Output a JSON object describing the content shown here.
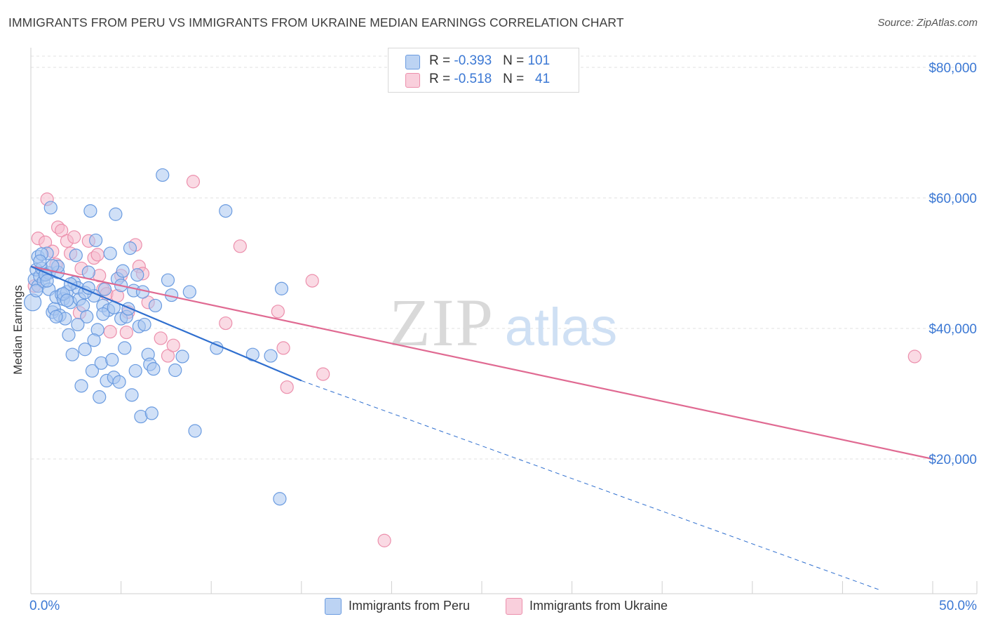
{
  "title": "IMMIGRANTS FROM PERU VS IMMIGRANTS FROM UKRAINE MEDIAN EARNINGS CORRELATION CHART",
  "source": "Source: ZipAtlas.com",
  "watermark": {
    "zip": "ZIP",
    "atlas": "atlas"
  },
  "legend": {
    "peru": {
      "r_label": "R = ",
      "r_value": "-0.393",
      "n_label": "N = ",
      "n_value": "101"
    },
    "ukraine": {
      "r_label": "R = ",
      "r_value": "-0.518",
      "n_label": "N = ",
      "n_value": "41"
    }
  },
  "colors": {
    "peru_fill": "#a9c6f0",
    "peru_stroke": "#6a9be0",
    "peru_line": "#2f6fcf",
    "ukraine_fill": "#f6bccd",
    "ukraine_stroke": "#ec8fac",
    "ukraine_line": "#e06a92",
    "grid": "#e2e2e2",
    "tick_label": "#3b78d4"
  },
  "chart_data": {
    "type": "scatter",
    "title": "IMMIGRANTS FROM PERU VS IMMIGRANTS FROM UKRAINE MEDIAN EARNINGS CORRELATION CHART",
    "xlabel": "",
    "ylabel": "Median Earnings",
    "xlim": [
      0,
      50
    ],
    "ylim": [
      0,
      82000
    ],
    "x_tick_labels": [
      "0.0%",
      "50.0%"
    ],
    "y_ticks": [
      20000,
      40000,
      60000,
      80000
    ],
    "y_tick_labels": [
      "$20,000",
      "$40,000",
      "$60,000",
      "$80,000"
    ],
    "series": [
      {
        "name": "Immigrants from Peru",
        "trend": {
          "x0": 0,
          "y0": 49500,
          "x1": 15,
          "y1": 32000,
          "x_dash_end": 47,
          "y_dash_end": 0
        },
        "points": [
          [
            0.1,
            44000
          ],
          [
            0.2,
            47500
          ],
          [
            0.3,
            49000
          ],
          [
            0.4,
            46500
          ],
          [
            0.4,
            51000
          ],
          [
            0.5,
            48000
          ],
          [
            0.6,
            49200
          ],
          [
            0.7,
            47200
          ],
          [
            0.8,
            48300
          ],
          [
            0.9,
            51500
          ],
          [
            1.0,
            46000
          ],
          [
            1.0,
            48500
          ],
          [
            1.1,
            58500
          ],
          [
            1.2,
            42500
          ],
          [
            1.3,
            43000
          ],
          [
            1.4,
            44800
          ],
          [
            1.5,
            48600
          ],
          [
            1.5,
            49500
          ],
          [
            1.6,
            42000
          ],
          [
            1.7,
            45200
          ],
          [
            1.8,
            44500
          ],
          [
            1.9,
            41500
          ],
          [
            2.0,
            45600
          ],
          [
            2.1,
            39000
          ],
          [
            2.2,
            44000
          ],
          [
            2.3,
            36000
          ],
          [
            2.4,
            47000
          ],
          [
            2.5,
            51200
          ],
          [
            2.6,
            46200
          ],
          [
            2.7,
            44500
          ],
          [
            2.8,
            31200
          ],
          [
            2.9,
            43500
          ],
          [
            3.0,
            36800
          ],
          [
            3.1,
            41800
          ],
          [
            3.2,
            48600
          ],
          [
            3.3,
            58000
          ],
          [
            3.4,
            33500
          ],
          [
            3.5,
            45000
          ],
          [
            3.6,
            53500
          ],
          [
            3.7,
            39800
          ],
          [
            3.8,
            29500
          ],
          [
            3.9,
            34700
          ],
          [
            4.0,
            43500
          ],
          [
            4.1,
            46000
          ],
          [
            4.2,
            32000
          ],
          [
            4.3,
            42800
          ],
          [
            4.4,
            51500
          ],
          [
            4.5,
            35200
          ],
          [
            4.6,
            32500
          ],
          [
            4.7,
            57500
          ],
          [
            4.8,
            47600
          ],
          [
            4.9,
            31800
          ],
          [
            5.0,
            41500
          ],
          [
            5.1,
            48800
          ],
          [
            5.2,
            37000
          ],
          [
            5.3,
            41800
          ],
          [
            5.4,
            43000
          ],
          [
            5.5,
            52300
          ],
          [
            5.6,
            29800
          ],
          [
            5.7,
            45800
          ],
          [
            5.8,
            33500
          ],
          [
            5.9,
            48200
          ],
          [
            6.0,
            40300
          ],
          [
            6.1,
            26500
          ],
          [
            6.2,
            45600
          ],
          [
            6.3,
            40600
          ],
          [
            6.5,
            36000
          ],
          [
            6.6,
            34500
          ],
          [
            6.7,
            27000
          ],
          [
            6.8,
            33800
          ],
          [
            6.9,
            43500
          ],
          [
            7.3,
            63500
          ],
          [
            7.6,
            47400
          ],
          [
            7.8,
            45100
          ],
          [
            8.0,
            33600
          ],
          [
            8.4,
            35700
          ],
          [
            8.8,
            45600
          ],
          [
            9.1,
            24300
          ],
          [
            10.3,
            37000
          ],
          [
            10.8,
            58000
          ],
          [
            12.3,
            36000
          ],
          [
            13.3,
            35800
          ],
          [
            13.9,
            46100
          ],
          [
            13.8,
            13900
          ],
          [
            0.3,
            45800
          ],
          [
            0.6,
            51400
          ],
          [
            1.2,
            49600
          ],
          [
            0.8,
            48200
          ],
          [
            1.8,
            45300
          ],
          [
            2.2,
            46800
          ],
          [
            2.6,
            40600
          ],
          [
            3.0,
            45500
          ],
          [
            3.5,
            38200
          ],
          [
            4.0,
            42200
          ],
          [
            4.6,
            43200
          ],
          [
            5.0,
            46600
          ],
          [
            1.4,
            41800
          ],
          [
            0.5,
            50300
          ],
          [
            0.9,
            47300
          ],
          [
            2.0,
            44300
          ],
          [
            3.2,
            46200
          ]
        ]
      },
      {
        "name": "Immigrants from Ukraine",
        "trend": {
          "x0": 0,
          "y0": 49500,
          "x1": 50,
          "y1": 20000
        },
        "points": [
          [
            0.2,
            46500
          ],
          [
            0.4,
            53800
          ],
          [
            0.8,
            53200
          ],
          [
            0.9,
            59800
          ],
          [
            1.2,
            51800
          ],
          [
            1.4,
            49800
          ],
          [
            1.5,
            55500
          ],
          [
            1.7,
            55000
          ],
          [
            2.0,
            53400
          ],
          [
            2.2,
            51500
          ],
          [
            2.4,
            54000
          ],
          [
            2.7,
            42400
          ],
          [
            2.8,
            49200
          ],
          [
            3.2,
            53400
          ],
          [
            3.5,
            50800
          ],
          [
            3.7,
            51300
          ],
          [
            3.8,
            48100
          ],
          [
            4.0,
            46000
          ],
          [
            4.2,
            45300
          ],
          [
            4.4,
            39500
          ],
          [
            4.8,
            45000
          ],
          [
            5.0,
            48100
          ],
          [
            5.3,
            39400
          ],
          [
            5.4,
            42500
          ],
          [
            5.8,
            52800
          ],
          [
            6.0,
            49500
          ],
          [
            6.2,
            48400
          ],
          [
            6.5,
            44000
          ],
          [
            7.2,
            38500
          ],
          [
            7.6,
            35800
          ],
          [
            7.9,
            37400
          ],
          [
            9.0,
            62500
          ],
          [
            10.8,
            40800
          ],
          [
            11.6,
            52600
          ],
          [
            13.7,
            42600
          ],
          [
            14.0,
            37000
          ],
          [
            14.2,
            31000
          ],
          [
            15.6,
            47300
          ],
          [
            16.2,
            33000
          ],
          [
            19.6,
            7500
          ],
          [
            49.0,
            35700
          ]
        ]
      }
    ]
  },
  "bottom_legend": {
    "peru": "Immigrants from Peru",
    "ukraine": "Immigrants from Ukraine"
  }
}
